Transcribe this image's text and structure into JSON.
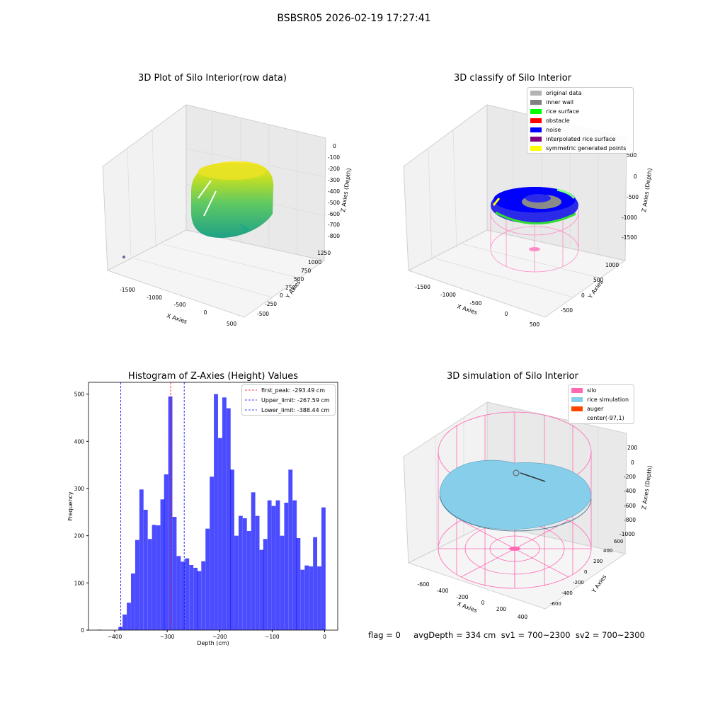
{
  "figure": {
    "suptitle": "BSBSR05 2026-02-19 17:27:41",
    "status": "flag = 0     avgDepth = 334 cm  sv1 = 700~2300  sv2 = 700~2300"
  },
  "panel1": {
    "title": "3D Plot of Silo Interior(row data)",
    "xlabel": "X Axies",
    "ylabel": "Y Axies",
    "zlabel": "Z Axies (Depth)",
    "xticks": [
      "-1500",
      "-1000",
      "-500",
      "0",
      "500"
    ],
    "yticks": [
      "-500",
      "-250",
      "0",
      "250",
      "500",
      "750",
      "1000",
      "1250"
    ],
    "zticks": [
      "0",
      "-100",
      "-200",
      "-300",
      "-400",
      "-500",
      "-600",
      "-700",
      "-800"
    ]
  },
  "panel2": {
    "title": "3D classify of Silo Interior",
    "xlabel": "X Axies",
    "ylabel": "Y Axies",
    "zlabel": "Z Axies (Depth)",
    "xticks": [
      "-1500",
      "-1000",
      "-500",
      "0",
      "500"
    ],
    "yticks": [
      "-500",
      "0",
      "500",
      "1000"
    ],
    "zticks": [
      "500",
      "0",
      "-500",
      "-1000",
      "-1500"
    ],
    "legend": [
      {
        "label": "original data",
        "color": "#b3b3b3"
      },
      {
        "label": "inner wall",
        "color": "#808080"
      },
      {
        "label": "rice surface",
        "color": "#00ff00"
      },
      {
        "label": "obstacle",
        "color": "#ff0000"
      },
      {
        "label": "noise",
        "color": "#0000ff"
      },
      {
        "label": "interpolated rice surface",
        "color": "#800080"
      },
      {
        "label": "symmetric generated points",
        "color": "#ffff00"
      }
    ]
  },
  "panel4": {
    "title": "3D simulation of Silo Interior",
    "xlabel": "X Axies",
    "ylabel": "Y Axies",
    "zlabel": "Z Axies (Depth)",
    "xticks": [
      "-600",
      "-400",
      "-200",
      "0",
      "200",
      "400"
    ],
    "yticks": [
      "-600",
      "-400",
      "-200",
      "0",
      "200",
      "400",
      "600"
    ],
    "zticks": [
      "200",
      "0",
      "-200",
      "-400",
      "-600",
      "-800",
      "-1000"
    ],
    "legend": [
      {
        "label": "silo",
        "color": "#ff69b4"
      },
      {
        "label": "rice simulation",
        "color": "#87ceeb"
      },
      {
        "label": "auger",
        "color": "#ff4500"
      },
      {
        "label": "center(-97,1)",
        "color": ""
      }
    ]
  },
  "chart_data": {
    "type": "bar",
    "title": "Histogram of Z-Axies (Height) Values",
    "xlabel": "Depth (cm)",
    "ylabel": "Frequency",
    "xlim": [
      -450,
      25
    ],
    "ylim": [
      0,
      525
    ],
    "xticks": [
      -400,
      -300,
      -200,
      -100,
      0
    ],
    "yticks": [
      0,
      100,
      200,
      300,
      400,
      500
    ],
    "bar_color": "#0000ff",
    "bin_width": 7.88,
    "bins": [
      [
        -433,
        1
      ],
      [
        -393,
        7
      ],
      [
        -385,
        33
      ],
      [
        -377,
        58
      ],
      [
        -369,
        120
      ],
      [
        -361,
        191
      ],
      [
        -353,
        298
      ],
      [
        -345,
        255
      ],
      [
        -337,
        193
      ],
      [
        -329,
        223
      ],
      [
        -321,
        222
      ],
      [
        -313,
        277
      ],
      [
        -306,
        330
      ],
      [
        -298,
        495
      ],
      [
        -290,
        240
      ],
      [
        -282,
        157
      ],
      [
        -274,
        145
      ],
      [
        -266,
        152
      ],
      [
        -258,
        138
      ],
      [
        -250,
        132
      ],
      [
        -243,
        125
      ],
      [
        -235,
        146
      ],
      [
        -227,
        215
      ],
      [
        -219,
        325
      ],
      [
        -211,
        500
      ],
      [
        -203,
        407
      ],
      [
        -195,
        493
      ],
      [
        -187,
        470
      ],
      [
        -180,
        340
      ],
      [
        -172,
        200
      ],
      [
        -164,
        242
      ],
      [
        -156,
        237
      ],
      [
        -148,
        210
      ],
      [
        -140,
        292
      ],
      [
        -132,
        242
      ],
      [
        -124,
        170
      ],
      [
        -117,
        193
      ],
      [
        -109,
        275
      ],
      [
        -101,
        263
      ],
      [
        -93,
        275
      ],
      [
        -85,
        200
      ],
      [
        -77,
        270
      ],
      [
        -69,
        340
      ],
      [
        -61,
        275
      ],
      [
        -54,
        195
      ],
      [
        -46,
        128
      ],
      [
        -38,
        137
      ],
      [
        -30,
        135
      ],
      [
        -22,
        197
      ],
      [
        -14,
        135
      ],
      [
        -6,
        260
      ]
    ],
    "lines": [
      {
        "name": "first_peak: -293.49 cm",
        "x": -293.49,
        "color": "#ff0000"
      },
      {
        "name": "Upper_limit: -267.59 cm",
        "x": -267.59,
        "color": "#0000ff"
      },
      {
        "name": "Lower_limit: -388.44 cm",
        "x": -388.44,
        "color": "#0000ff"
      }
    ]
  }
}
